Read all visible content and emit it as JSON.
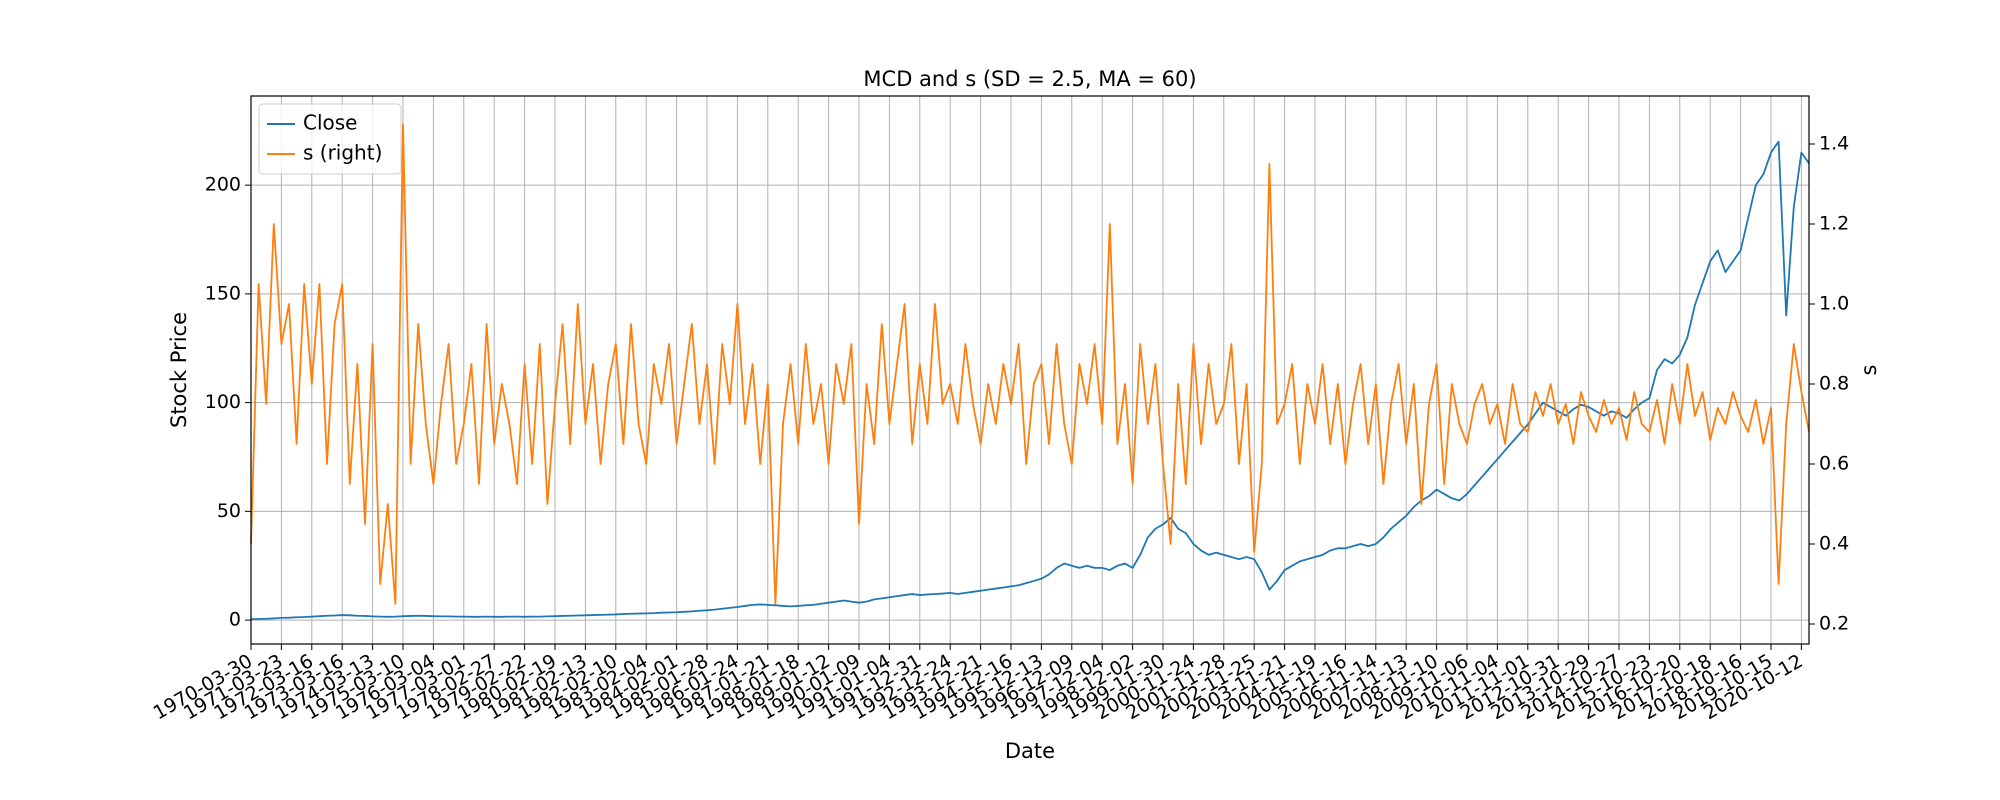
{
  "chart_data": {
    "type": "line",
    "title": "MCD and s (SD = 2.5, MA = 60)",
    "xlabel": "Date",
    "ylabel": "Stock Price",
    "y2label": "s",
    "categories": [
      "1970-03-30",
      null,
      null,
      null,
      "1971-03-23",
      null,
      null,
      null,
      "1972-03-16",
      null,
      null,
      null,
      "1973-03-16",
      null,
      null,
      null,
      "1974-03-13",
      null,
      null,
      null,
      "1975-03-10",
      null,
      null,
      null,
      "1976-03-04",
      null,
      null,
      null,
      "1977-03-01",
      null,
      null,
      null,
      "1978-02-27",
      null,
      null,
      null,
      "1979-02-22",
      null,
      null,
      null,
      "1980-02-19",
      null,
      null,
      null,
      "1981-02-13",
      null,
      null,
      null,
      "1982-02-10",
      null,
      null,
      null,
      "1983-02-04",
      null,
      null,
      null,
      "1984-02-01",
      null,
      null,
      null,
      "1985-01-28",
      null,
      null,
      null,
      "1986-01-24",
      null,
      null,
      null,
      "1987-01-21",
      null,
      null,
      null,
      "1988-01-18",
      null,
      null,
      null,
      "1989-01-12",
      null,
      null,
      null,
      "1990-01-09",
      null,
      null,
      null,
      "1991-01-04",
      null,
      null,
      null,
      "1991-12-31",
      null,
      null,
      null,
      "1992-12-24",
      null,
      null,
      null,
      "1993-12-21",
      null,
      null,
      null,
      "1994-12-16",
      null,
      null,
      null,
      "1995-12-13",
      null,
      null,
      null,
      "1996-12-09",
      null,
      null,
      null,
      "1997-12-04",
      null,
      null,
      null,
      "1998-12-02",
      null,
      null,
      null,
      "1999-11-30",
      null,
      null,
      null,
      "2000-11-24",
      null,
      null,
      null,
      "2001-11-28",
      null,
      null,
      null,
      "2002-11-25",
      null,
      null,
      null,
      "2003-11-21",
      null,
      null,
      null,
      "2004-11-19",
      null,
      null,
      null,
      "2005-11-16",
      null,
      null,
      null,
      "2006-11-14",
      null,
      null,
      null,
      "2007-11-13",
      null,
      null,
      null,
      "2008-11-10",
      null,
      null,
      null,
      "2009-11-06",
      null,
      null,
      null,
      "2010-11-04",
      null,
      null,
      null,
      "2011-11-01",
      null,
      null,
      null,
      "2012-10-31",
      null,
      null,
      null,
      "2013-10-29",
      null,
      null,
      null,
      "2014-10-27",
      null,
      null,
      null,
      "2015-10-23",
      null,
      null,
      null,
      "2016-10-20",
      null,
      null,
      null,
      "2017-10-18",
      null,
      null,
      null,
      "2018-10-16",
      null,
      null,
      null,
      "2019-10-15",
      null,
      null,
      null,
      "2020-10-12",
      null
    ],
    "series": [
      {
        "name": "Close",
        "color": "#1f77b4",
        "values": [
          0.4,
          0.5,
          0.6,
          0.8,
          1.0,
          1.1,
          1.3,
          1.4,
          1.6,
          1.8,
          2.0,
          2.1,
          2.3,
          2.2,
          2.0,
          1.9,
          1.7,
          1.6,
          1.5,
          1.6,
          1.8,
          1.9,
          2.0,
          1.9,
          1.8,
          1.7,
          1.7,
          1.6,
          1.6,
          1.5,
          1.5,
          1.6,
          1.5,
          1.5,
          1.6,
          1.6,
          1.5,
          1.6,
          1.6,
          1.7,
          1.8,
          1.9,
          2.0,
          2.1,
          2.2,
          2.3,
          2.4,
          2.5,
          2.6,
          2.8,
          2.9,
          3.0,
          3.1,
          3.2,
          3.4,
          3.5,
          3.6,
          3.8,
          4.0,
          4.3,
          4.5,
          4.8,
          5.2,
          5.6,
          6.0,
          6.5,
          7.0,
          7.2,
          7.0,
          6.8,
          6.5,
          6.3,
          6.5,
          6.8,
          7.0,
          7.5,
          8.0,
          8.5,
          9.0,
          8.5,
          8.0,
          8.5,
          9.5,
          10.0,
          10.5,
          11.0,
          11.5,
          12.0,
          11.5,
          11.8,
          12.0,
          12.2,
          12.5,
          12.0,
          12.5,
          13.0,
          13.5,
          14.0,
          14.5,
          15.0,
          15.5,
          16.0,
          17.0,
          18.0,
          19.0,
          21.0,
          24.0,
          26.0,
          25.0,
          24.0,
          25.0,
          24.0,
          24.0,
          23.0,
          25.0,
          26.0,
          24.0,
          30.0,
          38.0,
          42.0,
          44.0,
          47.0,
          42.0,
          40.0,
          35.0,
          32.0,
          30.0,
          31.0,
          30.0,
          29.0,
          28.0,
          29.0,
          28.0,
          22.0,
          14.0,
          18.0,
          23.0,
          25.0,
          27.0,
          28.0,
          29.0,
          30.0,
          32.0,
          33.0,
          33.0,
          34.0,
          35.0,
          34.0,
          35.0,
          38.0,
          42.0,
          45.0,
          48.0,
          52.0,
          55.0,
          57.0,
          60.0,
          58.0,
          56.0,
          55.0,
          58.0,
          62.0,
          66.0,
          70.0,
          74.0,
          78.0,
          82.0,
          86.0,
          90.0,
          95.0,
          100.0,
          98.0,
          96.0,
          94.0,
          97.0,
          99.0,
          98.0,
          96.0,
          94.0,
          96.0,
          95.0,
          93.0,
          97.0,
          100.0,
          102.0,
          115.0,
          120.0,
          118.0,
          122.0,
          130.0,
          145.0,
          155.0,
          165.0,
          170.0,
          160.0,
          165.0,
          170.0,
          185.0,
          200.0,
          205.0,
          215.0,
          220.0,
          140.0,
          190.0,
          215.0,
          210.0
        ]
      },
      {
        "name": "s (right)",
        "color": "#ff7f0e",
        "axis": "y2",
        "values": [
          0.4,
          1.05,
          0.75,
          1.2,
          0.9,
          1.0,
          0.65,
          1.05,
          0.8,
          1.05,
          0.6,
          0.95,
          1.05,
          0.55,
          0.85,
          0.45,
          0.9,
          0.3,
          0.5,
          0.25,
          1.45,
          0.6,
          0.95,
          0.7,
          0.55,
          0.75,
          0.9,
          0.6,
          0.7,
          0.85,
          0.55,
          0.95,
          0.65,
          0.8,
          0.7,
          0.55,
          0.85,
          0.6,
          0.9,
          0.5,
          0.75,
          0.95,
          0.65,
          1.0,
          0.7,
          0.85,
          0.6,
          0.8,
          0.9,
          0.65,
          0.95,
          0.7,
          0.6,
          0.85,
          0.75,
          0.9,
          0.65,
          0.8,
          0.95,
          0.7,
          0.85,
          0.6,
          0.9,
          0.75,
          1.0,
          0.7,
          0.85,
          0.6,
          0.8,
          0.25,
          0.7,
          0.85,
          0.65,
          0.9,
          0.7,
          0.8,
          0.6,
          0.85,
          0.75,
          0.9,
          0.45,
          0.8,
          0.65,
          0.95,
          0.7,
          0.85,
          1.0,
          0.65,
          0.85,
          0.7,
          1.0,
          0.75,
          0.8,
          0.7,
          0.9,
          0.75,
          0.65,
          0.8,
          0.7,
          0.85,
          0.75,
          0.9,
          0.6,
          0.8,
          0.85,
          0.65,
          0.9,
          0.7,
          0.6,
          0.85,
          0.75,
          0.9,
          0.7,
          1.2,
          0.65,
          0.8,
          0.55,
          0.9,
          0.7,
          0.85,
          0.6,
          0.4,
          0.8,
          0.55,
          0.9,
          0.65,
          0.85,
          0.7,
          0.75,
          0.9,
          0.6,
          0.8,
          0.38,
          0.6,
          1.35,
          0.7,
          0.75,
          0.85,
          0.6,
          0.8,
          0.7,
          0.85,
          0.65,
          0.8,
          0.6,
          0.75,
          0.85,
          0.65,
          0.8,
          0.55,
          0.75,
          0.85,
          0.65,
          0.8,
          0.5,
          0.75,
          0.85,
          0.55,
          0.8,
          0.7,
          0.65,
          0.75,
          0.8,
          0.7,
          0.75,
          0.65,
          0.8,
          0.7,
          0.68,
          0.78,
          0.72,
          0.8,
          0.7,
          0.75,
          0.65,
          0.78,
          0.72,
          0.68,
          0.76,
          0.7,
          0.74,
          0.66,
          0.78,
          0.7,
          0.68,
          0.76,
          0.65,
          0.8,
          0.7,
          0.85,
          0.72,
          0.78,
          0.66,
          0.74,
          0.7,
          0.78,
          0.72,
          0.68,
          0.76,
          0.65,
          0.74,
          0.3,
          0.7,
          0.9,
          0.78,
          0.68
        ]
      }
    ],
    "ylim": [
      -11,
      241
    ],
    "yticks": [
      0,
      50,
      100,
      150,
      200
    ],
    "y2lim": [
      0.15,
      1.52
    ],
    "y2ticks": [
      0.2,
      0.4,
      0.6,
      0.8,
      {
        "value": 1.0,
        "label": "1.0"
      },
      1.2,
      1.4
    ],
    "grid": true,
    "legend": "upper left"
  }
}
